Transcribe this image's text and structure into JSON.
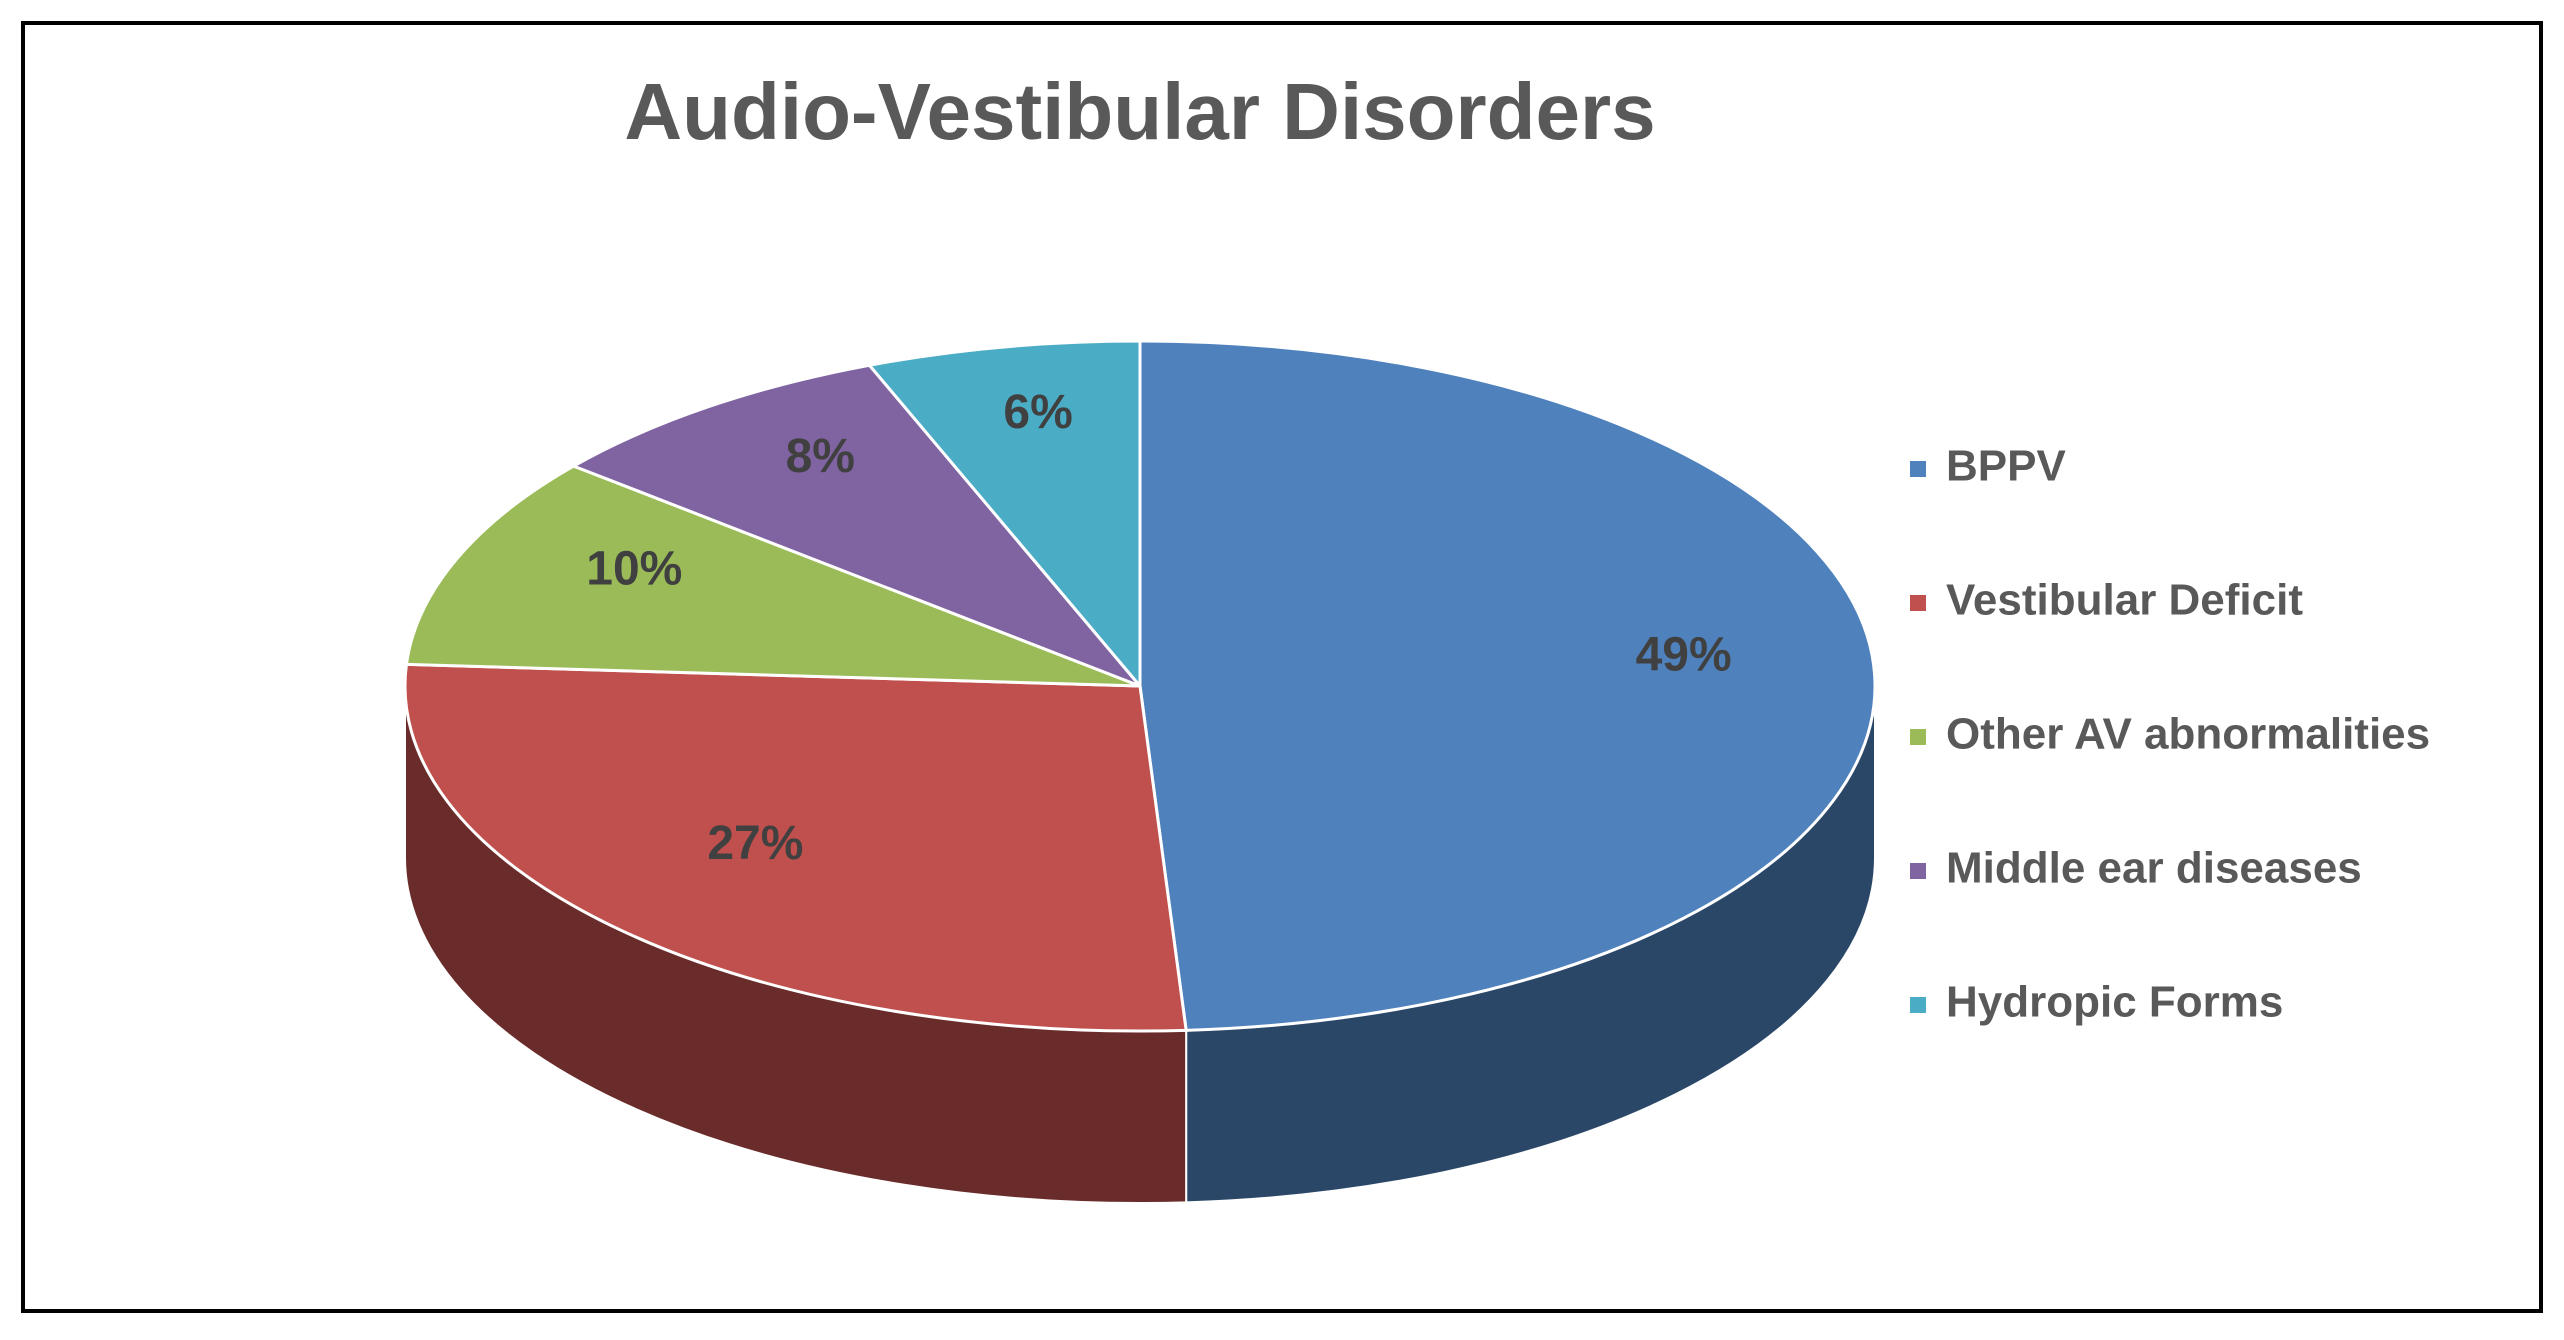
{
  "chart_data": {
    "type": "pie3d",
    "title": "Audio-Vestibular Disorders",
    "categories": [
      "BPPV",
      "Vestibular Deficit",
      "Other AV abnormalities",
      "Middle ear diseases",
      "Hydropic Forms"
    ],
    "values": [
      49,
      27,
      10,
      8,
      6
    ],
    "value_labels": [
      "49%",
      "27%",
      "10%",
      "8%",
      "6%"
    ],
    "colors": [
      "#4f81bd",
      "#c0504d",
      "#9bbb59",
      "#8064a2",
      "#4bacc6"
    ],
    "legend": "right"
  }
}
